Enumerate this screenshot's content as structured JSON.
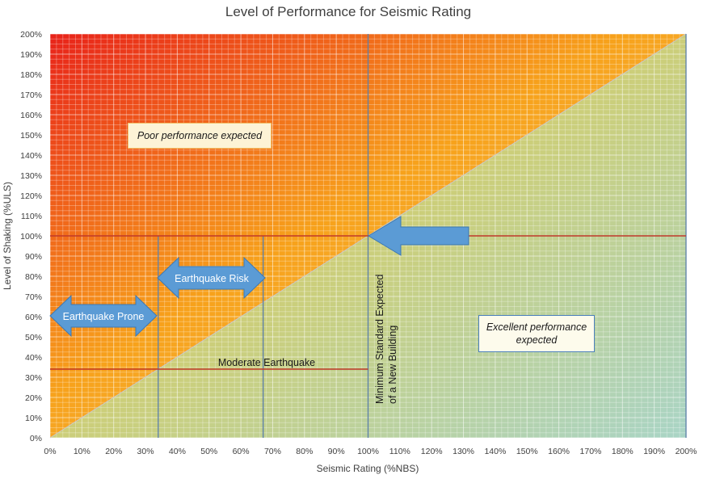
{
  "chart_data": {
    "type": "area",
    "title": "Level of Performance for Seismic Rating",
    "xlabel": "Seismic Rating (%NBS)",
    "ylabel": "Level of Shaking (%ULS)",
    "xlim": [
      0,
      200
    ],
    "ylim": [
      0,
      200
    ],
    "xticks": [
      "0%",
      "10%",
      "20%",
      "30%",
      "40%",
      "50%",
      "60%",
      "70%",
      "80%",
      "90%",
      "100%",
      "110%",
      "120%",
      "130%",
      "140%",
      "150%",
      "160%",
      "170%",
      "180%",
      "190%",
      "200%"
    ],
    "yticks": [
      "0%",
      "10%",
      "20%",
      "30%",
      "40%",
      "50%",
      "60%",
      "70%",
      "80%",
      "90%",
      "100%",
      "110%",
      "120%",
      "130%",
      "140%",
      "150%",
      "160%",
      "170%",
      "180%",
      "190%",
      "200%"
    ],
    "grid": true,
    "diagonal": {
      "x": [
        0,
        200
      ],
      "y": [
        0,
        200
      ]
    },
    "hlines": [
      {
        "y": 100,
        "x_from": 0,
        "x_to": 200
      },
      {
        "y": 34,
        "x_from": 0,
        "x_to": 100
      }
    ],
    "vlines": [
      {
        "x": 34,
        "y_from": 0,
        "y_to": 100
      },
      {
        "x": 67,
        "y_from": 0,
        "y_to": 100
      },
      {
        "x": 100,
        "y_from": 0,
        "y_to": 200
      },
      {
        "x": 200,
        "y_from": 0,
        "y_to": 200
      }
    ],
    "regions": [
      {
        "label": "Poor performance expected",
        "side": "above-diagonal",
        "colors": [
          "#e8231a",
          "#f7a21b",
          "#f3d27a"
        ]
      },
      {
        "label": "Excellent performance expected",
        "side": "below-diagonal",
        "colors": [
          "#e9c53a",
          "#c9cf7f",
          "#a9d4c6"
        ]
      }
    ],
    "annotations": {
      "poor": "Poor performance expected",
      "excellent_line1": "Excellent performance",
      "excellent_line2": "expected",
      "earthquake_prone": "Earthquake Prone",
      "earthquake_risk": "Earthquake Risk",
      "moderate": "Moderate Earthquake",
      "minimum_line1": "Minimum Standard Expected",
      "minimum_line2": "of a New Building"
    },
    "colors": {
      "arrow_fill": "#5b9bd5",
      "arrow_stroke": "#3c78b4",
      "red_line": "#c0392b",
      "blue_line": "#5b7fa8",
      "note_border_poor": "#f2c26b",
      "note_border_excellent": "#4a7ebb"
    }
  }
}
